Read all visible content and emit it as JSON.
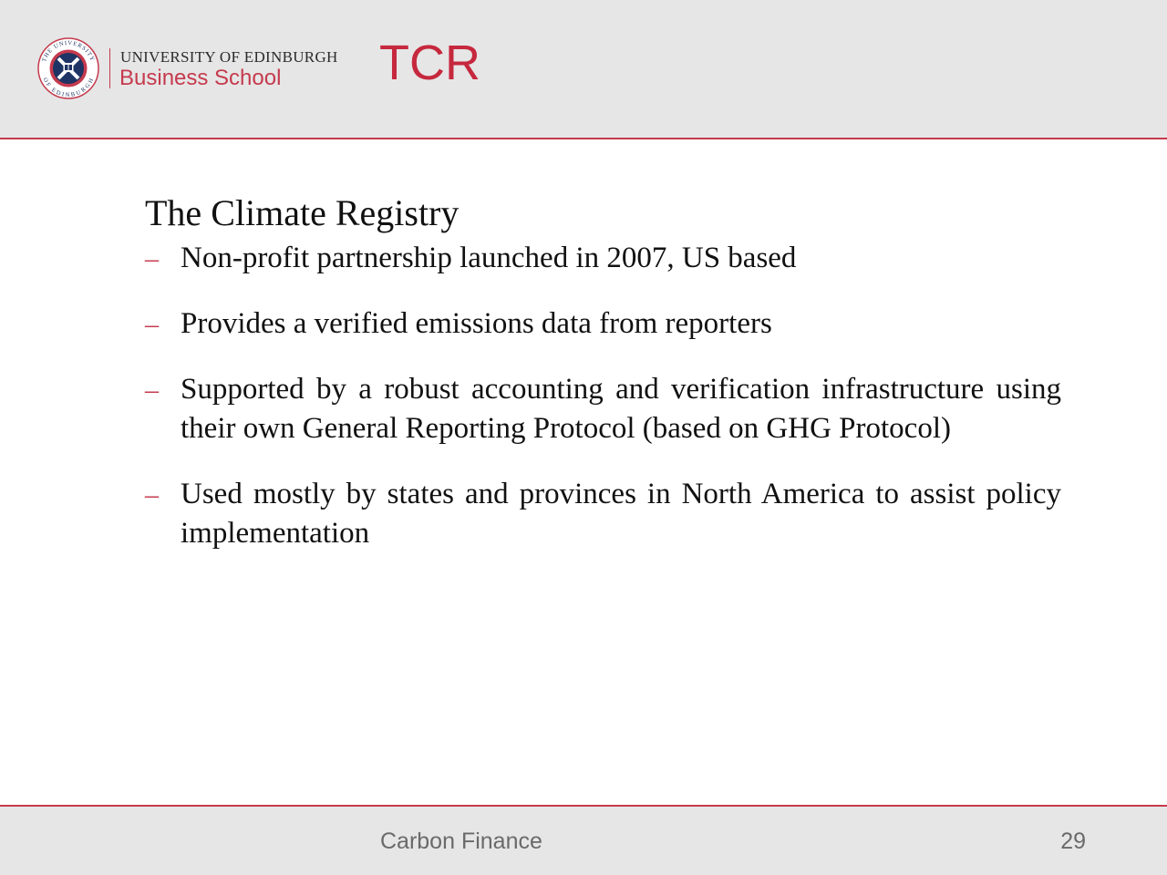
{
  "header": {
    "logo": {
      "university": "UNIVERSITY OF EDINBURGH",
      "school": "Business School",
      "crest_icon": "university-crest-icon",
      "crest_text_top": "THE UNIVERSITY",
      "crest_text_bottom": "OF EDINBURGH"
    },
    "title": "TCR"
  },
  "content": {
    "heading": "The Climate Registry",
    "bullet_marker": "–",
    "bullets": [
      "Non-profit partnership launched in 2007, US based",
      "Provides a verified emissions data from reporters",
      "Supported by a robust accounting and verification infrastructure using their own General Reporting Protocol (based on GHG Protocol)",
      "Used mostly by states and provinces in North America to assist policy implementation"
    ]
  },
  "footer": {
    "course": "Carbon Finance",
    "page_number": "29"
  },
  "colors": {
    "accent": "#c53a4d",
    "title": "#c6283e",
    "header_bg": "#e6e6e6",
    "crest_navy": "#1d3464"
  }
}
